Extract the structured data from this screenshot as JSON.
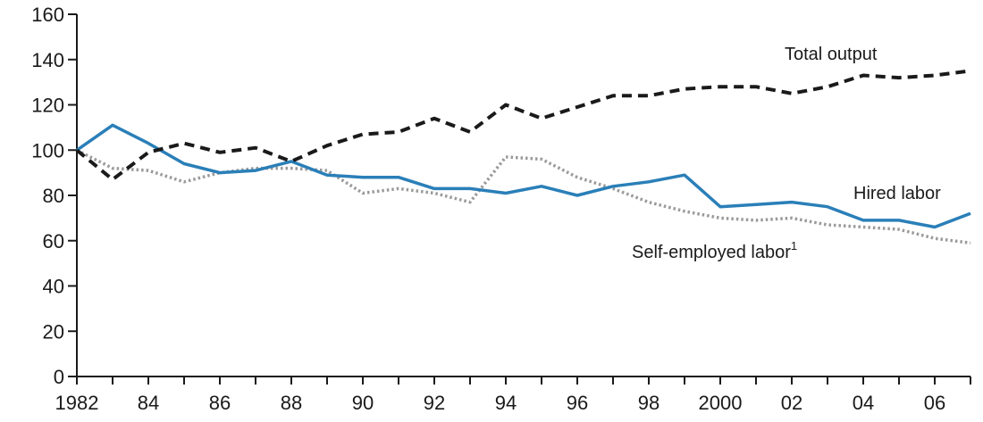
{
  "chart_data": {
    "type": "line",
    "title": "",
    "xlabel": "",
    "ylabel": "",
    "x": [
      1982,
      1983,
      1984,
      1985,
      1986,
      1987,
      1988,
      1989,
      1990,
      1991,
      1992,
      1993,
      1994,
      1995,
      1996,
      1997,
      1998,
      1999,
      2000,
      2001,
      2002,
      2003,
      2004,
      2005,
      2006,
      2007
    ],
    "xlim": [
      1982,
      2007
    ],
    "ylim": [
      0,
      160
    ],
    "x_ticks": [
      1982,
      1984,
      1986,
      1988,
      1990,
      1992,
      1994,
      1996,
      1998,
      2000,
      2002,
      2004,
      2006
    ],
    "x_tick_labels": [
      "1982",
      "84",
      "86",
      "88",
      "90",
      "92",
      "94",
      "96",
      "98",
      "2000",
      "02",
      "04",
      "06"
    ],
    "y_ticks": [
      0,
      20,
      40,
      60,
      80,
      100,
      120,
      140,
      160
    ],
    "y_tick_labels": [
      "0",
      "20",
      "40",
      "60",
      "80",
      "100",
      "120",
      "140",
      "160"
    ],
    "grid": false,
    "legend": "none",
    "series": [
      {
        "name": "Total output",
        "color": "#1a1a1a",
        "style": "dashed",
        "values": [
          100,
          87,
          99,
          103,
          99,
          101,
          95,
          102,
          107,
          108,
          114,
          108,
          120,
          114,
          119,
          124,
          124,
          127,
          128,
          128,
          125,
          128,
          133,
          132,
          133,
          135
        ]
      },
      {
        "name": "Hired labor",
        "color": "#2a7fb8",
        "style": "solid",
        "values": [
          100,
          111,
          103,
          94,
          90,
          91,
          95,
          89,
          88,
          88,
          83,
          83,
          81,
          84,
          80,
          84,
          86,
          89,
          75,
          76,
          77,
          75,
          69,
          69,
          66,
          72
        ]
      },
      {
        "name": "Self-employed labor",
        "name_suffix": "1",
        "color": "#9a9a9a",
        "style": "dotted",
        "values": [
          100,
          92,
          91,
          86,
          90,
          92,
          92,
          91,
          81,
          83,
          81,
          77,
          97,
          96,
          88,
          83,
          77,
          73,
          70,
          69,
          70,
          67,
          66,
          65,
          61,
          59
        ]
      }
    ]
  }
}
